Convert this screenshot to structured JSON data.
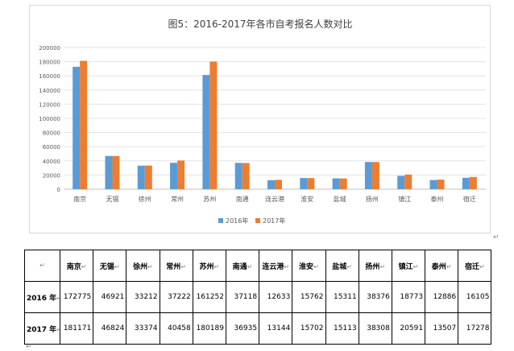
{
  "chart_data": {
    "type": "bar",
    "title": "图5：2016-2017年各市自考报名人数对比",
    "categories": [
      "南京",
      "无锡",
      "徐州",
      "常州",
      "苏州",
      "南通",
      "连云港",
      "淮安",
      "盐城",
      "扬州",
      "镇江",
      "泰州",
      "宿迁"
    ],
    "series": [
      {
        "name": "2016年",
        "color": "#5b9bd5",
        "values": [
          172775,
          46921,
          33212,
          37222,
          161252,
          37118,
          12633,
          15762,
          15311,
          38376,
          18773,
          12886,
          16105
        ]
      },
      {
        "name": "2017年",
        "color": "#ed7d31",
        "values": [
          181171,
          46824,
          33374,
          40458,
          180189,
          36935,
          13144,
          15702,
          15113,
          38308,
          20591,
          13507,
          17278
        ]
      }
    ],
    "ylim": [
      0,
      200000
    ],
    "yticks": [
      0,
      20000,
      40000,
      60000,
      80000,
      100000,
      120000,
      140000,
      160000,
      180000,
      200000
    ],
    "grid": true,
    "legend_position": "bottom"
  },
  "table": {
    "para_mark": "↵",
    "header_blank": "",
    "categories": [
      "南京",
      "无锡",
      "徐州",
      "常州",
      "苏州",
      "南通",
      "连云港",
      "淮安",
      "盐城",
      "扬州",
      "镇江",
      "泰州",
      "宿迁"
    ],
    "rows": [
      {
        "label": "2016 年",
        "values": [
          "172775",
          "46921",
          "33212",
          "37222",
          "161252",
          "37118",
          "12633",
          "15762",
          "15311",
          "38376",
          "18773",
          "12886",
          "16105"
        ]
      },
      {
        "label": "2017 年",
        "values": [
          "181171",
          "46824",
          "33374",
          "40458",
          "180189",
          "36935",
          "13144",
          "15702",
          "15113",
          "38308",
          "20591",
          "13507",
          "17278"
        ]
      }
    ]
  }
}
